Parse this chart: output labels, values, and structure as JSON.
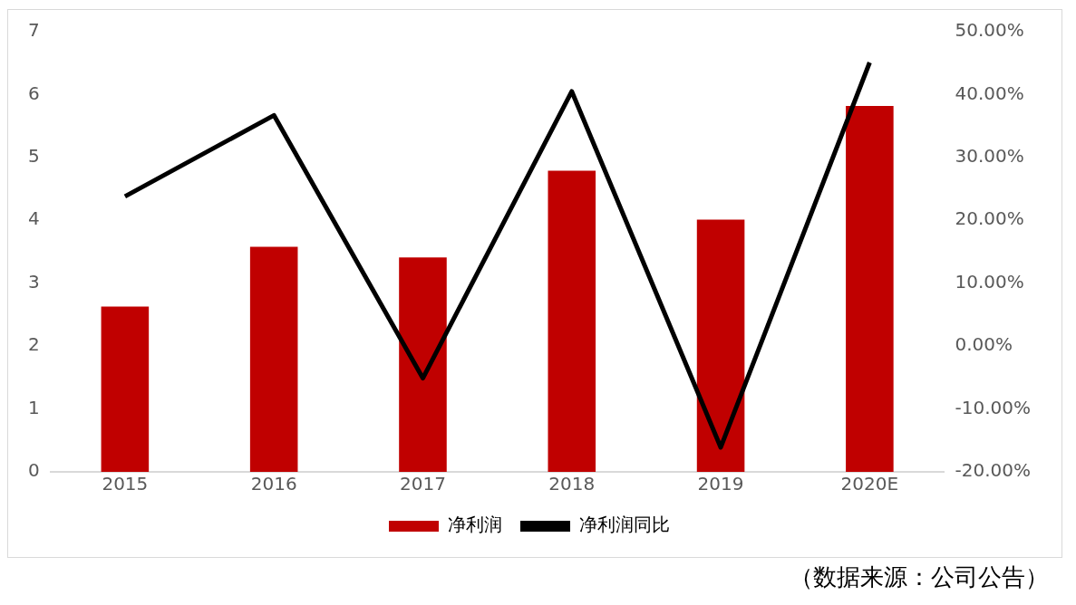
{
  "chart_data": {
    "type": "bar",
    "categories": [
      "2015",
      "2016",
      "2017",
      "2018",
      "2019",
      "2020E"
    ],
    "series": [
      {
        "name": "净利润",
        "color": "#c00000",
        "values": [
          2.63,
          3.58,
          3.41,
          4.79,
          4.01,
          5.82
        ]
      },
      {
        "name": "净利润同比",
        "type": "line",
        "axis": "y2",
        "color": "#000000",
        "values": [
          23.8,
          36.7,
          -5.1,
          40.5,
          -16.1,
          45.1
        ]
      }
    ],
    "ylim": [
      0,
      7
    ],
    "yticks": [
      0,
      1,
      2,
      3,
      4,
      5,
      6,
      7
    ],
    "y2lim": [
      -20,
      50
    ],
    "y2ticks": [
      {
        "value": -20,
        "label": "-20.00%"
      },
      {
        "value": -10,
        "label": "-10.00%"
      },
      {
        "value": 0,
        "label": "0.00%"
      },
      {
        "value": 10,
        "label": "10.00%"
      },
      {
        "value": 20,
        "label": "20.00%"
      },
      {
        "value": 30,
        "label": "30.00%"
      },
      {
        "value": 40,
        "label": "40.00%"
      },
      {
        "value": 50,
        "label": "50.00%"
      }
    ],
    "grid": false,
    "legend": "bottom",
    "marker": "none",
    "annotations": [
      "（数据来源：公司公告）"
    ]
  }
}
